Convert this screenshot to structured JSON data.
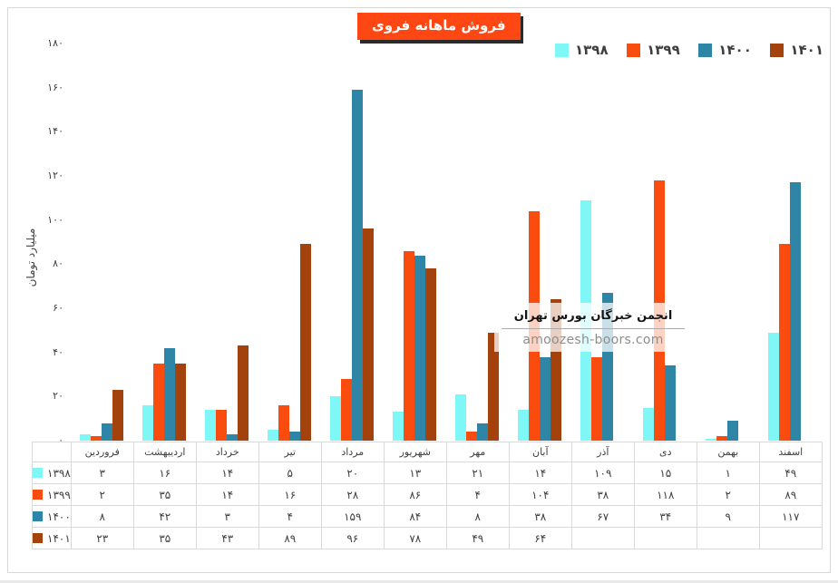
{
  "title": "فروش ماهانه فروی",
  "colors": {
    "cyan": "#7FF7F7",
    "orange": "#FB4C0F",
    "teal": "#2E85A5",
    "brown": "#A4420E",
    "title_bg": "#FF4713",
    "table_border": "#D9D9D9",
    "text": "#3F3F3F"
  },
  "legend": {
    "items": [
      {
        "label": "۱۳۹۸",
        "color": "cyan"
      },
      {
        "label": "۱۳۹۹",
        "color": "orange"
      },
      {
        "label": "۱۴۰۰",
        "color": "teal"
      },
      {
        "label": "۱۴۰۱",
        "color": "brown"
      }
    ]
  },
  "y_axis": {
    "title": "میلیارد تومان",
    "tick_values": [
      0,
      20,
      40,
      60,
      80,
      100,
      120,
      140,
      160,
      180
    ],
    "tick_labels": [
      "۰",
      "۲۰",
      "۴۰",
      "۶۰",
      "۸۰",
      "۱۰۰",
      "۱۲۰",
      "۱۴۰",
      "۱۶۰",
      "۱۸۰"
    ]
  },
  "watermark": {
    "line1": "انجمن خبرگان بورس تهران",
    "line2": "amoozesh-boors.com"
  },
  "chart_data": {
    "type": "bar",
    "title": "فروش ماهانه فروی",
    "xlabel": "",
    "ylabel": "میلیارد تومان",
    "ylim": [
      0,
      180
    ],
    "grid": false,
    "legend_position": "top-right",
    "categories": [
      "فروردین",
      "اردیبهشت",
      "خرداد",
      "تیر",
      "مرداد",
      "شهریور",
      "مهر",
      "آبان",
      "آذر",
      "دی",
      "بهمن",
      "اسفند"
    ],
    "series": [
      {
        "name": "۱۳۹۸",
        "color": "cyan",
        "values": [
          3,
          16,
          14,
          5,
          20,
          13,
          21,
          14,
          109,
          15,
          1,
          49
        ]
      },
      {
        "name": "۱۳۹۹",
        "color": "orange",
        "values": [
          2,
          35,
          14,
          16,
          28,
          86,
          4,
          104,
          38,
          118,
          2,
          89
        ]
      },
      {
        "name": "۱۴۰۰",
        "color": "teal",
        "values": [
          8,
          42,
          3,
          4,
          159,
          84,
          8,
          38,
          67,
          34,
          9,
          117
        ]
      },
      {
        "name": "۱۴۰۱",
        "color": "brown",
        "values": [
          23,
          35,
          43,
          89,
          96,
          78,
          49,
          64,
          null,
          null,
          null,
          null
        ]
      }
    ]
  },
  "table": {
    "columns": [
      "فروردین",
      "اردیبهشت",
      "خرداد",
      "تیر",
      "مرداد",
      "شهریور",
      "مهر",
      "آبان",
      "آذر",
      "دی",
      "بهمن",
      "اسفند"
    ],
    "rows": [
      {
        "label": "۱۳۹۸",
        "color": "cyan",
        "cells": [
          "۳",
          "۱۶",
          "۱۴",
          "۵",
          "۲۰",
          "۱۳",
          "۲۱",
          "۱۴",
          "۱۰۹",
          "۱۵",
          "۱",
          "۴۹"
        ]
      },
      {
        "label": "۱۳۹۹",
        "color": "orange",
        "cells": [
          "۲",
          "۳۵",
          "۱۴",
          "۱۶",
          "۲۸",
          "۸۶",
          "۴",
          "۱۰۴",
          "۳۸",
          "۱۱۸",
          "۲",
          "۸۹"
        ]
      },
      {
        "label": "۱۴۰۰",
        "color": "teal",
        "cells": [
          "۸",
          "۴۲",
          "۳",
          "۴",
          "۱۵۹",
          "۸۴",
          "۸",
          "۳۸",
          "۶۷",
          "۳۴",
          "۹",
          "۱۱۷"
        ]
      },
      {
        "label": "۱۴۰۱",
        "color": "brown",
        "cells": [
          "۲۳",
          "۳۵",
          "۴۳",
          "۸۹",
          "۹۶",
          "۷۸",
          "۴۹",
          "۶۴",
          "",
          "",
          "",
          ""
        ]
      }
    ]
  }
}
